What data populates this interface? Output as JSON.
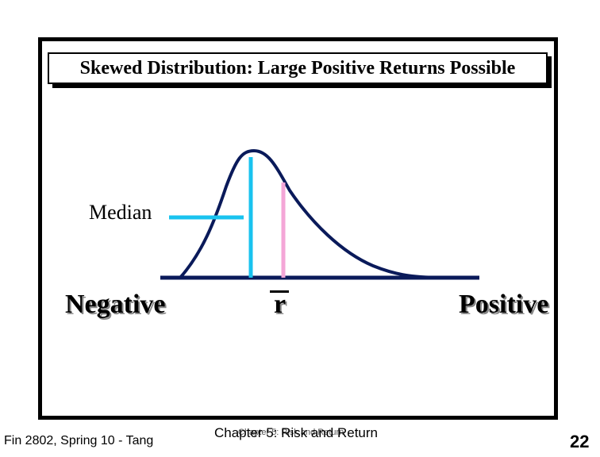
{
  "slide": {
    "title": "Skewed Distribution: Large Positive Returns Possible",
    "labels": {
      "median": "Median",
      "negative": "Negative",
      "mean_symbol": "r",
      "positive": "Positive"
    },
    "footer": {
      "left": "Fin 2802, Spring 10 - Tang",
      "center": "Chapter 5: Risk and Return",
      "center_ghost": "Chapter 5: Risk and Return",
      "page_number": "22"
    },
    "colors": {
      "curve": "#0a1a5a",
      "median_line": "#19c3ef",
      "mean_line": "#f4a6d7",
      "axis": "#0a1a5a"
    }
  }
}
